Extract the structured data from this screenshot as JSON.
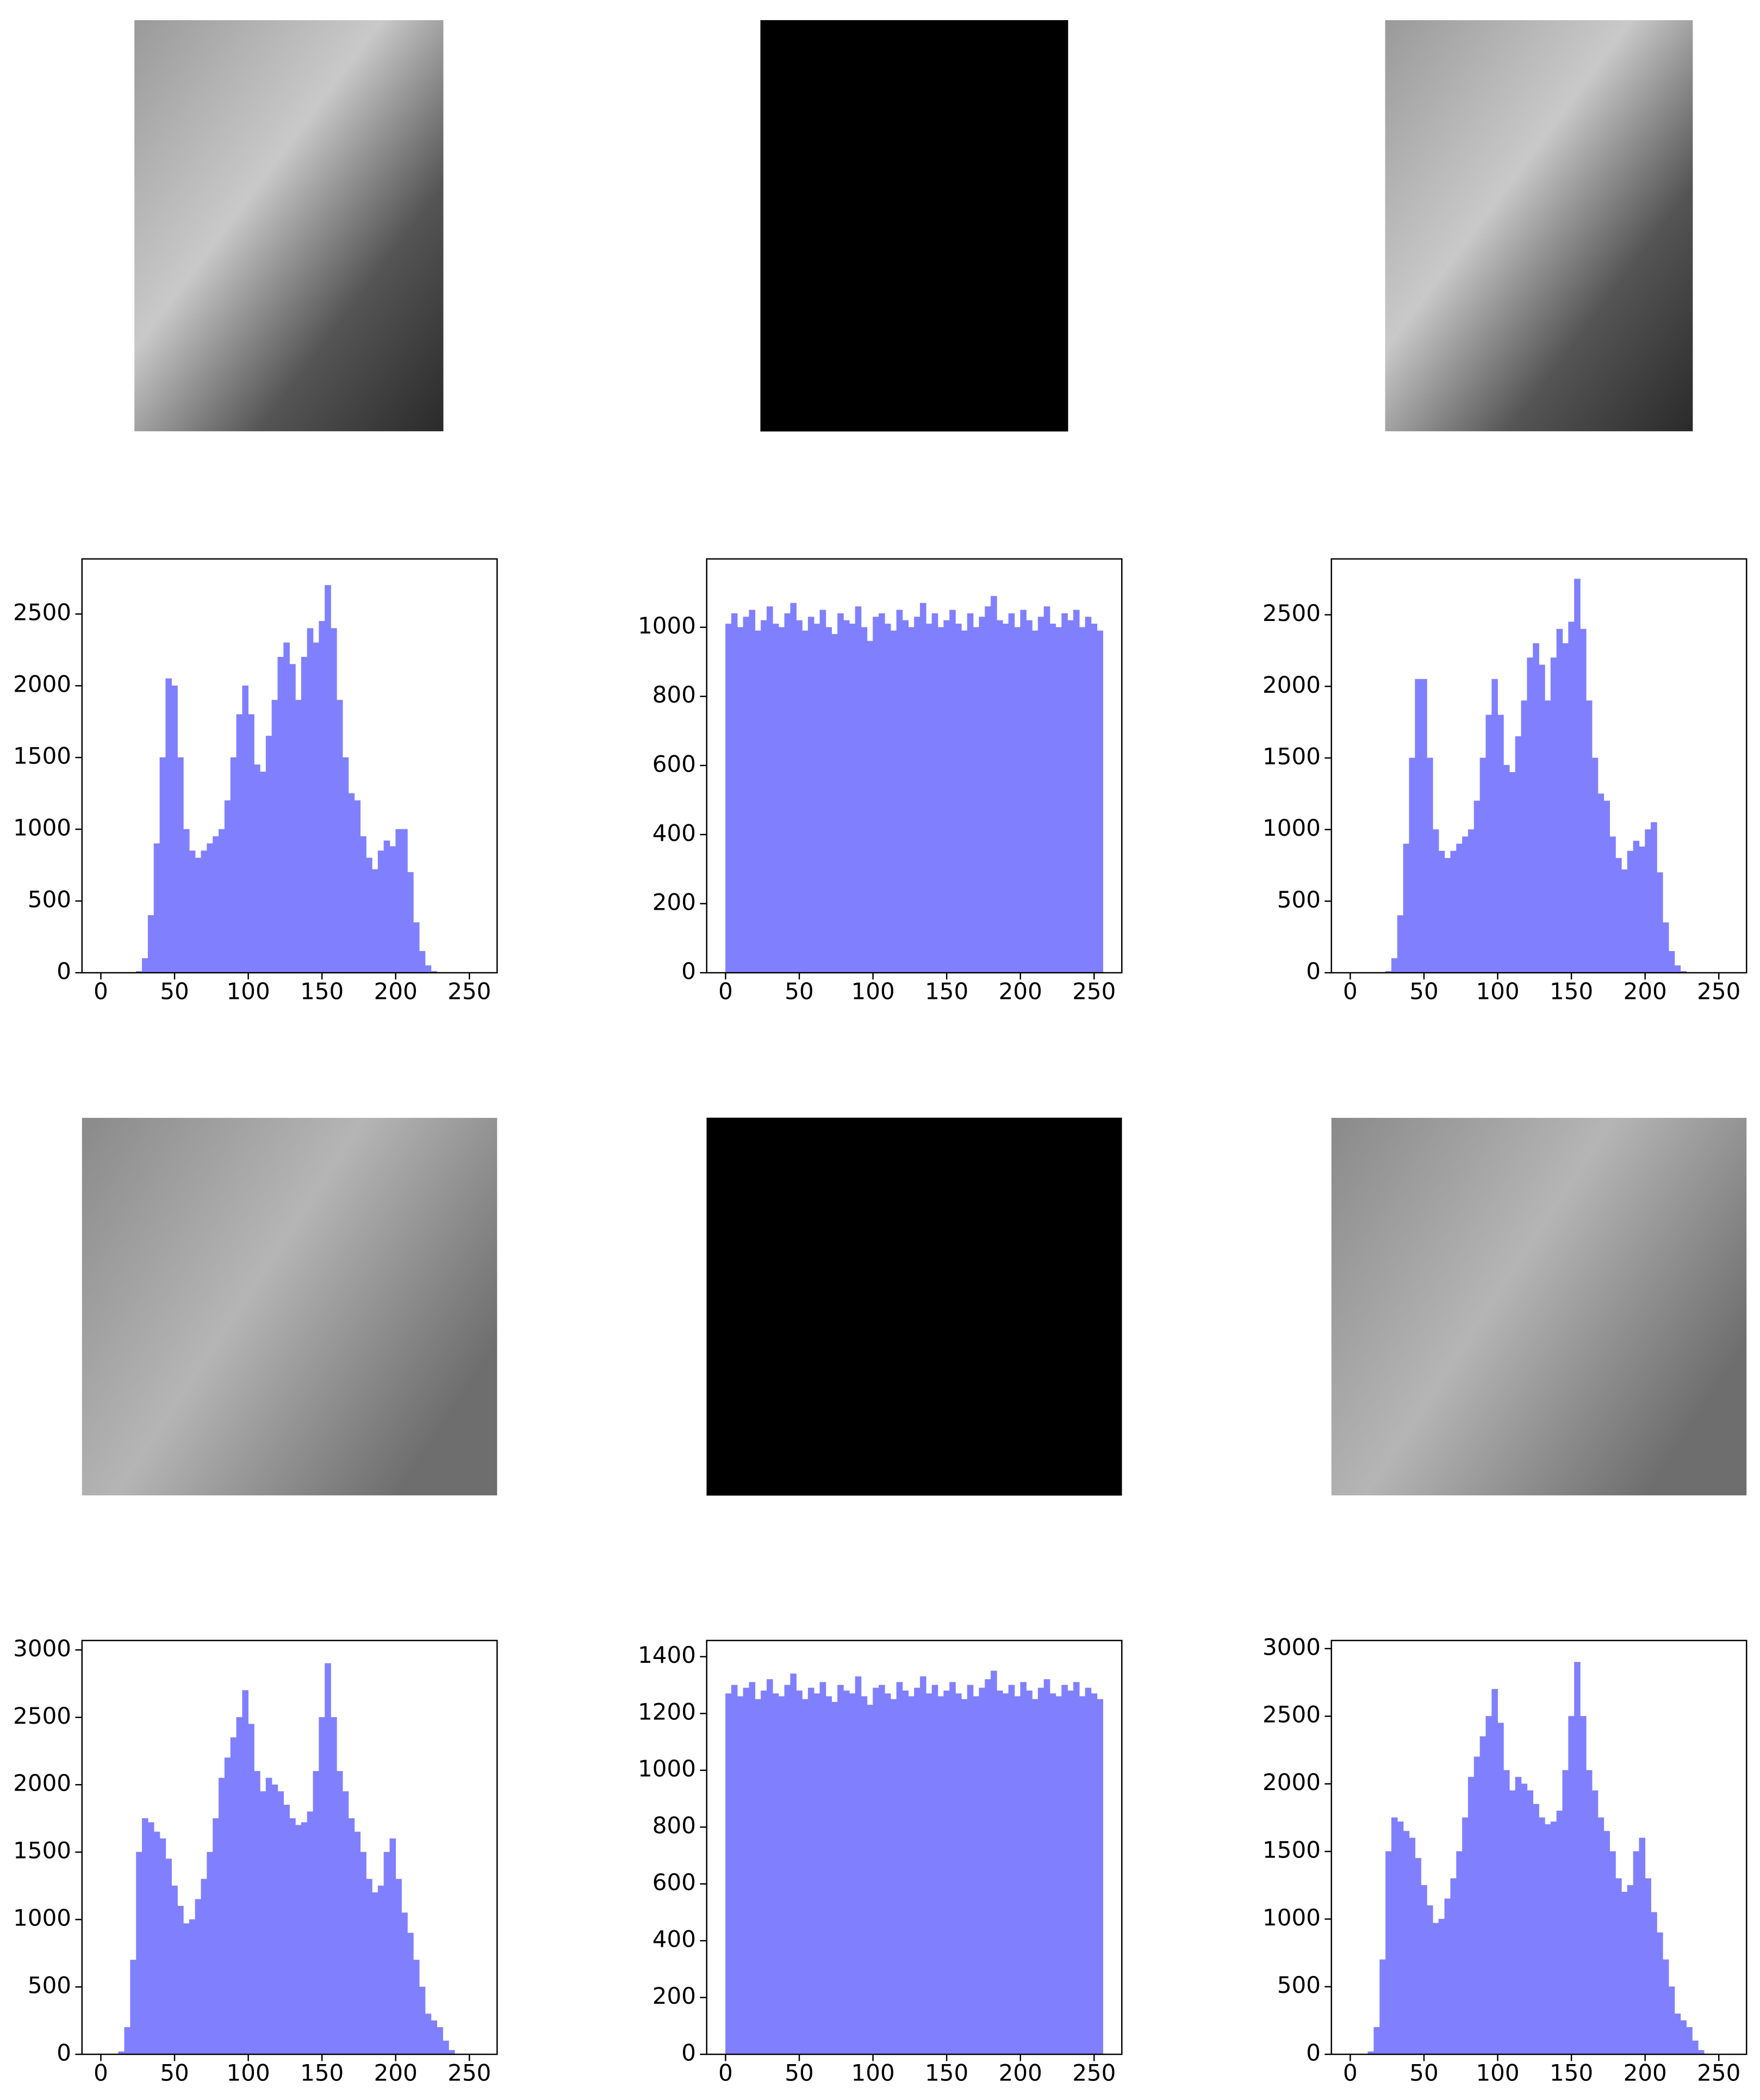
{
  "chart_data": [
    {
      "type": "histogram",
      "color": "#8080ff",
      "bins": [
        0,
        4,
        8,
        12,
        16,
        20,
        24,
        28,
        32,
        36,
        40,
        44,
        48,
        52,
        56,
        60,
        64,
        68,
        72,
        76,
        80,
        84,
        88,
        92,
        96,
        100,
        104,
        108,
        112,
        116,
        120,
        124,
        128,
        132,
        136,
        140,
        144,
        148,
        152,
        156,
        160,
        164,
        168,
        172,
        176,
        180,
        184,
        188,
        192,
        196,
        200,
        204,
        208,
        212,
        216,
        220,
        224,
        228,
        232,
        236,
        240,
        244,
        248,
        252,
        256
      ],
      "values": [
        0,
        0,
        0,
        0,
        0,
        0,
        10,
        100,
        400,
        900,
        1500,
        2050,
        2000,
        1500,
        1000,
        850,
        800,
        850,
        900,
        950,
        1000,
        1200,
        1500,
        1800,
        2000,
        1800,
        1450,
        1400,
        1650,
        1900,
        2200,
        2300,
        2150,
        1900,
        2200,
        2400,
        2300,
        2450,
        2700,
        2400,
        1900,
        1500,
        1250,
        1200,
        950,
        800,
        720,
        850,
        920,
        880,
        1000,
        1000,
        700,
        350,
        150,
        50,
        10,
        0,
        0,
        0,
        0,
        0,
        0,
        0
      ],
      "xlim": [
        -12.8,
        268.8
      ],
      "ylim": [
        0,
        2884
      ],
      "xticks": [
        0,
        50,
        100,
        150,
        200,
        250
      ],
      "yticks": [
        0,
        500,
        1000,
        1500,
        2000,
        2500
      ]
    },
    {
      "type": "histogram",
      "color": "#8080ff",
      "bins": [
        0,
        4,
        8,
        12,
        16,
        20,
        24,
        28,
        32,
        36,
        40,
        44,
        48,
        52,
        56,
        60,
        64,
        68,
        72,
        76,
        80,
        84,
        88,
        92,
        96,
        100,
        104,
        108,
        112,
        116,
        120,
        124,
        128,
        132,
        136,
        140,
        144,
        148,
        152,
        156,
        160,
        164,
        168,
        172,
        176,
        180,
        184,
        188,
        192,
        196,
        200,
        204,
        208,
        212,
        216,
        220,
        224,
        228,
        232,
        236,
        240,
        244,
        248,
        252,
        256
      ],
      "values": [
        1010,
        1040,
        1000,
        1030,
        1050,
        990,
        1020,
        1060,
        1010,
        1000,
        1040,
        1070,
        1020,
        990,
        1030,
        1010,
        1050,
        1000,
        980,
        1040,
        1020,
        1010,
        1060,
        1000,
        960,
        1030,
        1040,
        1010,
        990,
        1050,
        1020,
        1000,
        1030,
        1070,
        1010,
        1040,
        1000,
        1020,
        1050,
        1010,
        990,
        1040,
        1000,
        1030,
        1060,
        1090,
        1020,
        1010,
        1040,
        1000,
        1050,
        1020,
        990,
        1030,
        1060,
        1010,
        1000,
        1040,
        1020,
        1050,
        1000,
        1030,
        1010,
        990
      ],
      "xlim": [
        -12.8,
        268.8
      ],
      "ylim": [
        0,
        1198
      ],
      "xticks": [
        0,
        50,
        100,
        150,
        200,
        250
      ],
      "yticks": [
        0,
        200,
        400,
        600,
        800,
        1000
      ]
    },
    {
      "type": "histogram",
      "color": "#8080ff",
      "bins": [
        0,
        4,
        8,
        12,
        16,
        20,
        24,
        28,
        32,
        36,
        40,
        44,
        48,
        52,
        56,
        60,
        64,
        68,
        72,
        76,
        80,
        84,
        88,
        92,
        96,
        100,
        104,
        108,
        112,
        116,
        120,
        124,
        128,
        132,
        136,
        140,
        144,
        148,
        152,
        156,
        160,
        164,
        168,
        172,
        176,
        180,
        184,
        188,
        192,
        196,
        200,
        204,
        208,
        212,
        216,
        220,
        224,
        228,
        232,
        236,
        240,
        244,
        248,
        252,
        256
      ],
      "values": [
        0,
        0,
        0,
        0,
        0,
        0,
        10,
        100,
        400,
        900,
        1500,
        2050,
        2050,
        1500,
        1000,
        850,
        800,
        850,
        900,
        950,
        1000,
        1200,
        1500,
        1800,
        2050,
        1800,
        1450,
        1400,
        1650,
        1900,
        2200,
        2300,
        2150,
        1900,
        2200,
        2400,
        2300,
        2450,
        2750,
        2400,
        1900,
        1500,
        1250,
        1200,
        950,
        800,
        720,
        850,
        920,
        880,
        1000,
        1050,
        700,
        350,
        150,
        50,
        10,
        0,
        0,
        0,
        0,
        0,
        0,
        0
      ],
      "xlim": [
        -12.8,
        268.8
      ],
      "ylim": [
        0,
        2890
      ],
      "xticks": [
        0,
        50,
        100,
        150,
        200,
        250
      ],
      "yticks": [
        0,
        500,
        1000,
        1500,
        2000,
        2500
      ]
    },
    {
      "type": "histogram",
      "color": "#8080ff",
      "bins": [
        0,
        4,
        8,
        12,
        16,
        20,
        24,
        28,
        32,
        36,
        40,
        44,
        48,
        52,
        56,
        60,
        64,
        68,
        72,
        76,
        80,
        84,
        88,
        92,
        96,
        100,
        104,
        108,
        112,
        116,
        120,
        124,
        128,
        132,
        136,
        140,
        144,
        148,
        152,
        156,
        160,
        164,
        168,
        172,
        176,
        180,
        184,
        188,
        192,
        196,
        200,
        204,
        208,
        212,
        216,
        220,
        224,
        228,
        232,
        236,
        240,
        244,
        248,
        252,
        256
      ],
      "values": [
        0,
        0,
        0,
        20,
        200,
        700,
        1500,
        1750,
        1720,
        1650,
        1600,
        1450,
        1250,
        1100,
        970,
        1000,
        1150,
        1300,
        1500,
        1750,
        2050,
        2200,
        2350,
        2500,
        2700,
        2450,
        2100,
        1950,
        2050,
        2000,
        1950,
        1850,
        1750,
        1700,
        1720,
        1800,
        2100,
        2500,
        2900,
        2500,
        2100,
        1950,
        1750,
        1650,
        1500,
        1300,
        1200,
        1250,
        1500,
        1600,
        1300,
        1050,
        900,
        700,
        500,
        300,
        250,
        200,
        100,
        30,
        0,
        0,
        0,
        0
      ],
      "xlim": [
        -12.8,
        268.8
      ],
      "ylim": [
        0,
        3070
      ],
      "xticks": [
        0,
        50,
        100,
        150,
        200,
        250
      ],
      "yticks": [
        0,
        500,
        1000,
        1500,
        2000,
        2500,
        3000
      ]
    },
    {
      "type": "histogram",
      "color": "#8080ff",
      "bins": [
        0,
        4,
        8,
        12,
        16,
        20,
        24,
        28,
        32,
        36,
        40,
        44,
        48,
        52,
        56,
        60,
        64,
        68,
        72,
        76,
        80,
        84,
        88,
        92,
        96,
        100,
        104,
        108,
        112,
        116,
        120,
        124,
        128,
        132,
        136,
        140,
        144,
        148,
        152,
        156,
        160,
        164,
        168,
        172,
        176,
        180,
        184,
        188,
        192,
        196,
        200,
        204,
        208,
        212,
        216,
        220,
        224,
        228,
        232,
        236,
        240,
        244,
        248,
        252,
        256
      ],
      "values": [
        1270,
        1300,
        1260,
        1290,
        1310,
        1250,
        1280,
        1320,
        1270,
        1260,
        1300,
        1340,
        1280,
        1250,
        1290,
        1270,
        1310,
        1260,
        1240,
        1300,
        1280,
        1270,
        1330,
        1260,
        1230,
        1290,
        1300,
        1270,
        1250,
        1310,
        1280,
        1260,
        1290,
        1330,
        1270,
        1300,
        1260,
        1280,
        1310,
        1270,
        1250,
        1300,
        1260,
        1290,
        1320,
        1350,
        1280,
        1270,
        1300,
        1260,
        1310,
        1280,
        1250,
        1290,
        1320,
        1270,
        1260,
        1300,
        1280,
        1310,
        1260,
        1290,
        1270,
        1250
      ],
      "xlim": [
        -12.8,
        268.8
      ],
      "ylim": [
        0,
        1457
      ],
      "xticks": [
        0,
        50,
        100,
        150,
        200,
        250
      ],
      "yticks": [
        0,
        200,
        400,
        600,
        800,
        1000,
        1200,
        1400
      ]
    },
    {
      "type": "histogram",
      "color": "#8080ff",
      "bins": [
        0,
        4,
        8,
        12,
        16,
        20,
        24,
        28,
        32,
        36,
        40,
        44,
        48,
        52,
        56,
        60,
        64,
        68,
        72,
        76,
        80,
        84,
        88,
        92,
        96,
        100,
        104,
        108,
        112,
        116,
        120,
        124,
        128,
        132,
        136,
        140,
        144,
        148,
        152,
        156,
        160,
        164,
        168,
        172,
        176,
        180,
        184,
        188,
        192,
        196,
        200,
        204,
        208,
        212,
        216,
        220,
        224,
        228,
        232,
        236,
        240,
        244,
        248,
        252,
        256
      ],
      "values": [
        0,
        0,
        0,
        20,
        200,
        700,
        1500,
        1750,
        1720,
        1650,
        1600,
        1450,
        1250,
        1100,
        970,
        1000,
        1150,
        1300,
        1500,
        1750,
        2050,
        2200,
        2350,
        2500,
        2700,
        2450,
        2100,
        1950,
        2050,
        2000,
        1950,
        1850,
        1750,
        1700,
        1720,
        1800,
        2100,
        2500,
        2900,
        2500,
        2100,
        1950,
        1750,
        1650,
        1500,
        1300,
        1200,
        1250,
        1500,
        1600,
        1300,
        1050,
        900,
        700,
        500,
        300,
        250,
        200,
        100,
        30,
        0,
        0,
        0,
        0
      ],
      "xlim": [
        -12.8,
        268.8
      ],
      "ylim": [
        0,
        3060
      ],
      "xticks": [
        0,
        50,
        100,
        150,
        200,
        250
      ],
      "yticks": [
        0,
        500,
        1000,
        1500,
        2000,
        2500,
        3000
      ]
    }
  ]
}
